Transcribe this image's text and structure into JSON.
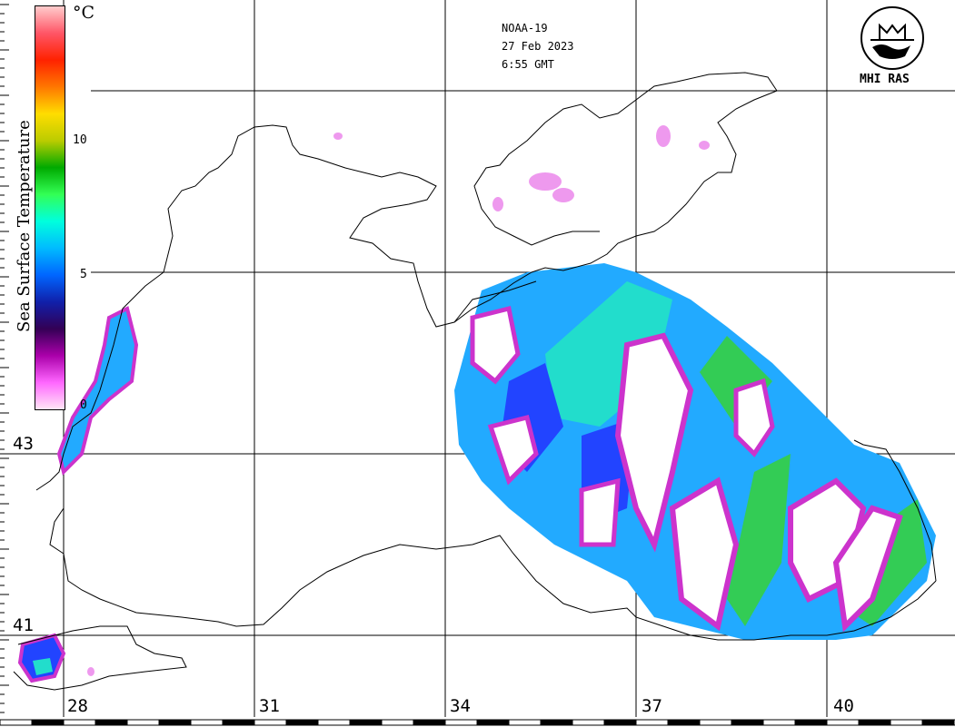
{
  "header": {
    "satellite": "NOAA-19",
    "date": "27 Feb 2023",
    "time": "6:55 GMT"
  },
  "logo": {
    "text": "MHI RAS"
  },
  "colorbar": {
    "title": "Sea Surface Temperature",
    "unit": "°C",
    "ticks": [
      "10",
      "5",
      "0"
    ],
    "colors": [
      "#ffe6f5",
      "#ff66ff",
      "#aa00aa",
      "#330055",
      "#1020aa",
      "#0066ff",
      "#00bbff",
      "#00ffdd",
      "#33ff55",
      "#00aa00",
      "#bbcc00",
      "#ffdd00",
      "#ff7700",
      "#ff2200",
      "#ff5566",
      "#ffcccc"
    ]
  },
  "lon_labels": [
    "28",
    "31",
    "34",
    "37",
    "40"
  ],
  "lat_labels": [
    "43",
    "41"
  ],
  "sst_palette": {
    "cold": "#cc33cc",
    "cool": "#2244ff",
    "mid": "#22aaff",
    "warm": "#22ddcc",
    "warmer": "#33cc55"
  }
}
